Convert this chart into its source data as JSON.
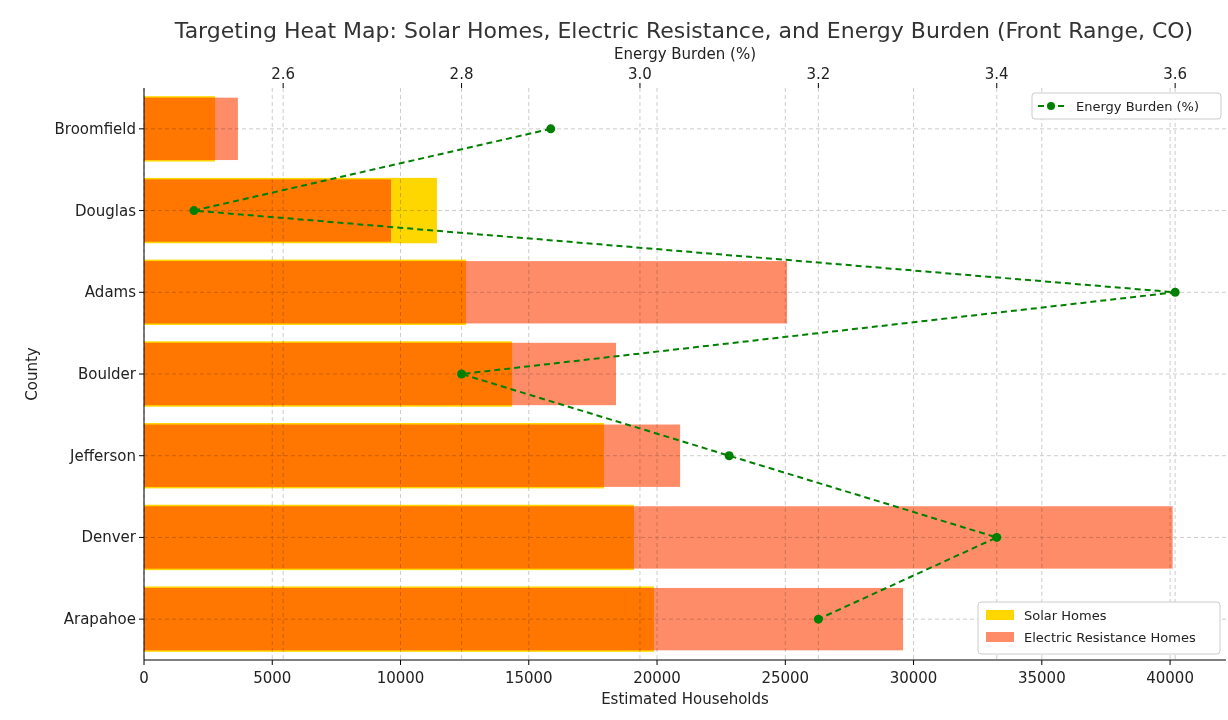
{
  "chart_data": {
    "type": "bar",
    "orientation": "horizontal",
    "title": "Targeting Heat Map: Solar Homes, Electric Resistance, and Energy Burden (Front Range, CO)",
    "xlabel": "Estimated Households",
    "ylabel": "County",
    "x2label": "Energy Burden (%)",
    "categories": [
      "Broomfield",
      "Douglas",
      "Adams",
      "Boulder",
      "Jefferson",
      "Denver",
      "Arapahoe"
    ],
    "series": [
      {
        "name": "Solar Homes",
        "color": "#ffd700",
        "values": [
          2770,
          11420,
          12550,
          14350,
          17930,
          19100,
          19880
        ]
      },
      {
        "name": "Electric Resistance Homes",
        "color": "#ff8c69",
        "values": [
          3660,
          9630,
          25070,
          18400,
          20900,
          40100,
          29590
        ]
      },
      {
        "name": "Energy Burden (%)",
        "type": "line",
        "axis": "x2",
        "color": "#008000",
        "line_style": "dashed",
        "marker": "circle",
        "values": [
          2.9,
          2.5,
          3.6,
          2.8,
          3.1,
          3.4,
          3.2
        ]
      }
    ],
    "xlim": [
      0,
      42180
    ],
    "xticks": [
      0,
      5000,
      10000,
      15000,
      20000,
      25000,
      30000,
      35000,
      40000
    ],
    "x2lim": [
      2.444,
      3.657
    ],
    "x2ticks": [
      {
        "value": 2.6,
        "label": "2.6"
      },
      {
        "value": 2.8,
        "label": "2.8"
      },
      {
        "value": 3.0,
        "label": "3.0"
      },
      {
        "value": 3.2,
        "label": "3.2"
      },
      {
        "value": 3.4,
        "label": "3.4"
      },
      {
        "value": 3.6,
        "label": "3.6"
      }
    ],
    "grid": true,
    "legend": "right"
  }
}
